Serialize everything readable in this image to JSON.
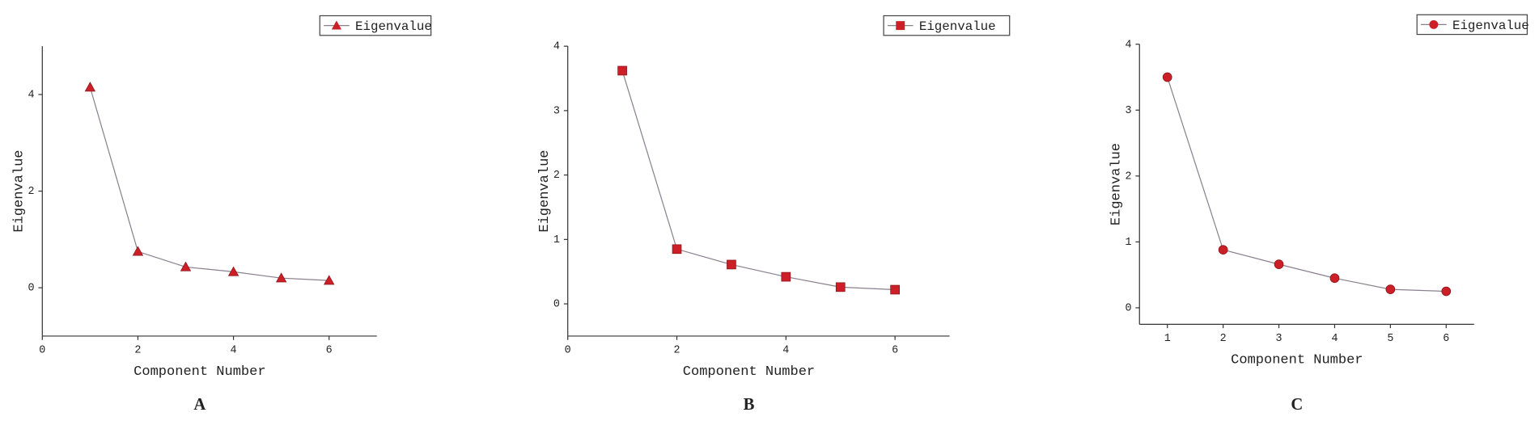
{
  "chart_data": [
    {
      "type": "line",
      "label": "A",
      "xlabel": "Component Number",
      "ylabel": "Eigenvalue",
      "x": [
        1,
        2,
        3,
        4,
        5,
        6
      ],
      "xlim": [
        0,
        7
      ],
      "xticks": [
        0,
        2,
        4,
        6
      ],
      "ylim": [
        -1,
        5
      ],
      "yticks": [
        0,
        2,
        4
      ],
      "legend": "top-right",
      "series": [
        {
          "name": "Eigenvalue",
          "color": "#8a7f8e",
          "marker": "triangle",
          "marker_color": "#cc1f28",
          "values": [
            4.15,
            0.75,
            0.43,
            0.33,
            0.2,
            0.15
          ]
        }
      ]
    },
    {
      "type": "line",
      "label": "B",
      "xlabel": "Component Number",
      "ylabel": "Eigenvalue",
      "x": [
        1,
        2,
        3,
        4,
        5,
        6
      ],
      "xlim": [
        0,
        7
      ],
      "xticks": [
        0,
        2,
        4,
        6
      ],
      "ylim": [
        -0.5,
        4
      ],
      "yticks": [
        0,
        1,
        2,
        3,
        4
      ],
      "legend": "top-right",
      "series": [
        {
          "name": "Eigenvalue",
          "color": "#8a7f8e",
          "marker": "square",
          "marker_color": "#cc1f28",
          "values": [
            3.62,
            0.85,
            0.61,
            0.42,
            0.26,
            0.22
          ]
        }
      ]
    },
    {
      "type": "line",
      "label": "C",
      "xlabel": "Component Number",
      "ylabel": "Eigenvalue",
      "x": [
        1,
        2,
        3,
        4,
        5,
        6
      ],
      "xlim": [
        0.5,
        6.5
      ],
      "xticks": [
        1,
        2,
        3,
        4,
        5,
        6
      ],
      "ylim": [
        -0.25,
        4
      ],
      "yticks": [
        0,
        1,
        2,
        3,
        4
      ],
      "legend": "top-right",
      "series": [
        {
          "name": "Eigenvalue",
          "color": "#8a7f8e",
          "marker": "circle",
          "marker_color": "#cc1f28",
          "values": [
            3.5,
            0.88,
            0.66,
            0.45,
            0.28,
            0.25
          ]
        }
      ]
    }
  ]
}
